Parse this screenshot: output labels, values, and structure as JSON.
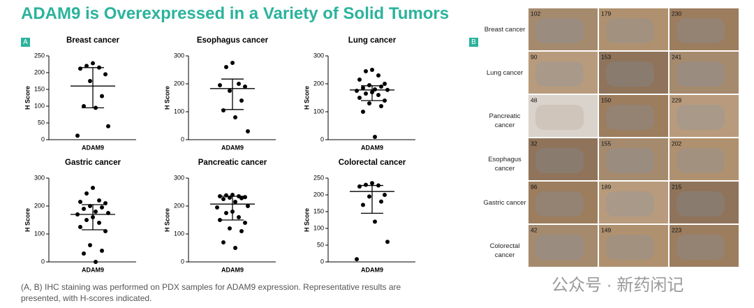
{
  "title": "ADAM9 is Overexpressed in a Variety of Solid Tumors",
  "panel_a_label": "A",
  "chart_data": [
    {
      "type": "scatter",
      "title": "Breast cancer",
      "y_label": "H Score",
      "x_label": "ADAM9",
      "color": "#000000",
      "values": [
        228,
        220,
        215,
        212,
        195,
        175,
        130,
        100,
        95,
        40,
        12
      ],
      "summary": {
        "center": 160,
        "lower": 95,
        "upper": 215
      },
      "ylim": [
        0,
        250
      ],
      "yticks": [
        0,
        50,
        100,
        150,
        200,
        250
      ]
    },
    {
      "type": "scatter",
      "title": "Esophagus cancer",
      "y_label": "H Score",
      "x_label": "ADAM9",
      "color": "#000000",
      "values": [
        275,
        260,
        200,
        195,
        190,
        175,
        140,
        105,
        80,
        30
      ],
      "summary": {
        "center": 183,
        "lower": 108,
        "upper": 217
      },
      "ylim": [
        0,
        300
      ],
      "yticks": [
        0,
        100,
        200,
        300
      ]
    },
    {
      "type": "scatter",
      "title": "Lung cancer",
      "y_label": "H Score",
      "x_label": "ADAM9",
      "color": "#000000",
      "values": [
        250,
        245,
        230,
        215,
        200,
        195,
        190,
        185,
        180,
        178,
        175,
        170,
        165,
        160,
        150,
        140,
        130,
        120,
        100,
        10
      ],
      "summary": {
        "center": 178,
        "lower": 140,
        "upper": 193
      },
      "ylim": [
        0,
        300
      ],
      "yticks": [
        0,
        100,
        200,
        300
      ]
    },
    {
      "type": "scatter",
      "title": "Gastric cancer",
      "y_label": "H Score",
      "x_label": "ADAM9",
      "color": "#000000",
      "values": [
        265,
        245,
        220,
        215,
        210,
        200,
        195,
        190,
        180,
        175,
        170,
        160,
        150,
        140,
        125,
        110,
        60,
        40,
        30,
        0
      ],
      "summary": {
        "center": 170,
        "lower": 115,
        "upper": 205
      },
      "ylim": [
        0,
        300
      ],
      "yticks": [
        0,
        100,
        200,
        300
      ]
    },
    {
      "type": "scatter",
      "title": "Pancreatic cancer",
      "y_label": "H Score",
      "x_label": "ADAM9",
      "color": "#000000",
      "values": [
        240,
        238,
        235,
        235,
        232,
        230,
        228,
        225,
        215,
        200,
        195,
        180,
        175,
        160,
        150,
        140,
        120,
        110,
        70,
        50
      ],
      "summary": {
        "center": 207,
        "lower": 150,
        "upper": 235
      },
      "ylim": [
        0,
        300
      ],
      "yticks": [
        0,
        100,
        200,
        300
      ]
    },
    {
      "type": "scatter",
      "title": "Colorectal cancer",
      "y_label": "H Score",
      "x_label": "ADAM9",
      "color": "#000000",
      "values": [
        235,
        230,
        228,
        225,
        200,
        195,
        180,
        170,
        120,
        60,
        8
      ],
      "summary": {
        "center": 210,
        "lower": 145,
        "upper": 228
      },
      "ylim": [
        0,
        250
      ],
      "yticks": [
        0,
        50,
        100,
        150,
        200,
        250
      ]
    }
  ],
  "caption": "(A, B) IHC staining was performed on PDX samples for ADAM9 expression. Representative results are presented, with H-scores indicated.",
  "panel_b": {
    "label": "B",
    "rows": [
      {
        "label": "Breast cancer",
        "scores": [
          102,
          179,
          230
        ]
      },
      {
        "label": "Lung cancer",
        "scores": [
          90,
          153,
          241
        ]
      },
      {
        "label": "Pancreatic cancer",
        "scores": [
          48,
          150,
          229
        ]
      },
      {
        "label": "Esophagus cancer",
        "scores": [
          32,
          155,
          202
        ]
      },
      {
        "label": "Gastric cancer",
        "scores": [
          96,
          189,
          215
        ]
      },
      {
        "label": "Colorectal cancer",
        "scores": [
          42,
          149,
          223
        ]
      }
    ]
  },
  "watermark": "公众号 · 新药闲记"
}
